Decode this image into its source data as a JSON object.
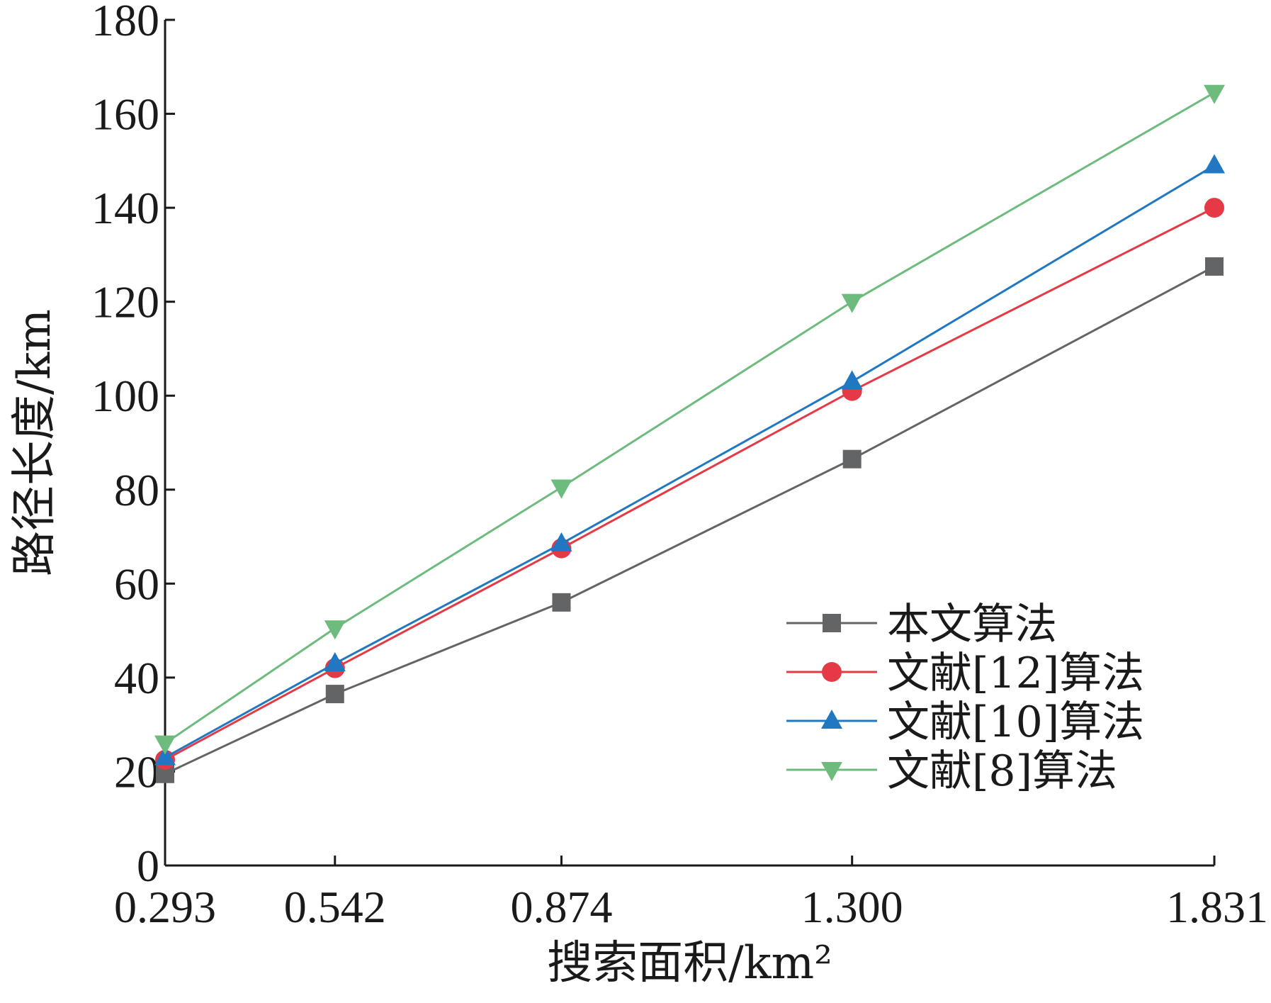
{
  "chart_data": {
    "type": "line",
    "xlabel": "搜索面积/km²",
    "ylabel": "路径长度/km",
    "categories": [
      "0.293",
      "0.542",
      "0.874",
      "1.300",
      "1.831"
    ],
    "x": [
      0.293,
      0.542,
      0.874,
      1.3,
      1.831
    ],
    "ylim": [
      0,
      180
    ],
    "yticks": [
      "0",
      "20",
      "40",
      "60",
      "80",
      "100",
      "120",
      "140",
      "160",
      "180"
    ],
    "grid": false,
    "legend_position": "lower-right",
    "series": [
      {
        "name": "本文算法",
        "marker": "square",
        "color": "#636466",
        "values": [
          19.5,
          36.5,
          56,
          86.5,
          127.5
        ]
      },
      {
        "name": "文献[12]算法",
        "marker": "circle",
        "color": "#e63946",
        "values": [
          22.5,
          42,
          67.5,
          101,
          140
        ]
      },
      {
        "name": "文献[10]算法",
        "marker": "triangle-up",
        "color": "#1f78c1",
        "values": [
          23,
          43,
          68.5,
          103,
          149
        ]
      },
      {
        "name": "文献[8]算法",
        "marker": "triangle-down",
        "color": "#6dbb7d",
        "values": [
          26,
          50.5,
          80.5,
          120,
          164.5
        ]
      }
    ]
  }
}
